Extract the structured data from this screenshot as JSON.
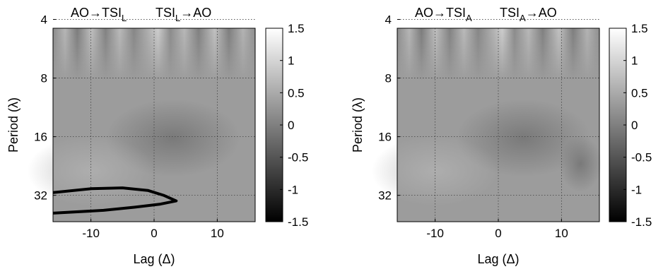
{
  "chart_data": [
    {
      "type": "heatmap",
      "title_left": "AO→TSI",
      "title_left_sub": "L",
      "title_right": "TSI",
      "title_right_sub": "L",
      "title_right_suffix": "→AO",
      "xlabel": "Lag (Δ)",
      "ylabel": "Period (λ)",
      "xlim": [
        -16,
        16
      ],
      "x_ticks": [
        -10,
        0,
        10
      ],
      "ylim_log2": [
        2.15,
        5.45
      ],
      "y_ticks": [
        4,
        8,
        16,
        32
      ],
      "colorbar": {
        "min": -1.5,
        "max": 1.5,
        "ticks": [
          1.5,
          1,
          0.5,
          0,
          -0.5,
          -1,
          -1.5
        ],
        "colormap": "gray"
      },
      "grid": true,
      "contour": true
    },
    {
      "type": "heatmap",
      "title_left": "AO→TSI",
      "title_left_sub": "A",
      "title_right": "TSI",
      "title_right_sub": "A",
      "title_right_suffix": "→AO",
      "xlabel": "Lag (Δ)",
      "ylabel": "Period (λ)",
      "xlim": [
        -16,
        16
      ],
      "x_ticks": [
        -10,
        0,
        10
      ],
      "ylim_log2": [
        2.15,
        5.45
      ],
      "y_ticks": [
        4,
        8,
        16,
        32
      ],
      "colorbar": {
        "min": -1.5,
        "max": 1.5,
        "ticks": [
          1.5,
          1,
          0.5,
          0,
          -0.5,
          -1,
          -1.5
        ],
        "colormap": "gray"
      },
      "grid": true,
      "contour": false
    }
  ]
}
